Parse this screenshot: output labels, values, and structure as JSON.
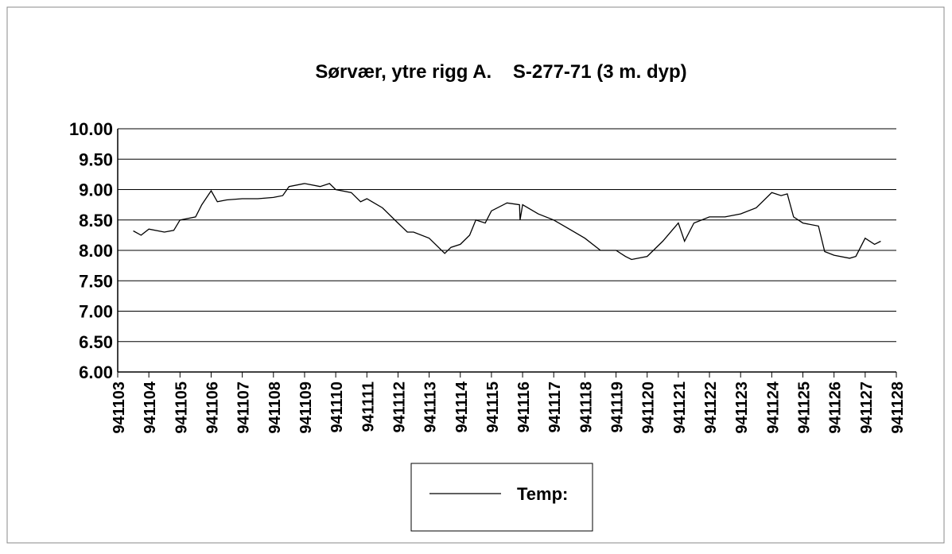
{
  "chart_data": {
    "type": "line",
    "title": "Sørvær, ytre rigg A.    S-277-71 (3 m. dyp)",
    "xlim": [
      941103,
      941128
    ],
    "xticks": [
      941103,
      941104,
      941105,
      941106,
      941107,
      941108,
      941109,
      941110,
      941111,
      941112,
      941113,
      941114,
      941115,
      941116,
      941117,
      941118,
      941119,
      941120,
      941121,
      941122,
      941123,
      941124,
      941125,
      941126,
      941127,
      941128
    ],
    "ylim": [
      6,
      10
    ],
    "yticks": [
      {
        "value": 6,
        "label": "6.00"
      },
      {
        "value": 6.5,
        "label": "6.50"
      },
      {
        "value": 7,
        "label": "7.00"
      },
      {
        "value": 7.5,
        "label": "7.50"
      },
      {
        "value": 8,
        "label": "8.00"
      },
      {
        "value": 8.5,
        "label": "8.50"
      },
      {
        "value": 9,
        "label": "9.00"
      },
      {
        "value": 9.5,
        "label": "9.50"
      },
      {
        "value": 10,
        "label": "10.00"
      }
    ],
    "grid": true,
    "legend": "bottom",
    "x": [
      941103.5,
      941103.75,
      941104,
      941104.5,
      941104.8,
      941105,
      941105.5,
      941105.7,
      941106,
      941106.2,
      941106.5,
      941107,
      941107.5,
      941108,
      941108.3,
      941108.5,
      941109,
      941109.5,
      941109.8,
      941110,
      941110.5,
      941110.8,
      941111,
      941111.5,
      941112,
      941112.3,
      941112.5,
      941113,
      941113.5,
      941113.7,
      941114,
      941114.3,
      941114.5,
      941114.8,
      941115,
      941115.5,
      941115.9,
      941115.92,
      941116,
      941116.5,
      941117,
      941117.5,
      941118,
      941118.5,
      941119,
      941119.3,
      941119.5,
      941120,
      941120.5,
      941121,
      941121.2,
      941121.5,
      941122,
      941122.5,
      941123,
      941123.5,
      941124,
      941124.3,
      941124.5,
      941124.7,
      941125,
      941125.5,
      941125.7,
      941126,
      941126.5,
      941126.7,
      941127,
      941127.3,
      941127.5
    ],
    "series": [
      {
        "name": "Temp:",
        "color": "#000000",
        "values": [
          8.32,
          8.25,
          8.35,
          8.3,
          8.33,
          8.5,
          8.55,
          8.75,
          8.98,
          8.8,
          8.83,
          8.85,
          8.85,
          8.87,
          8.9,
          9.05,
          9.1,
          9.05,
          9.1,
          9.0,
          8.95,
          8.8,
          8.85,
          8.7,
          8.45,
          8.3,
          8.3,
          8.2,
          7.95,
          8.05,
          8.1,
          8.25,
          8.5,
          8.45,
          8.65,
          8.78,
          8.75,
          8.5,
          8.75,
          8.6,
          8.5,
          8.35,
          8.2,
          8.0,
          8.0,
          7.9,
          7.85,
          7.9,
          8.15,
          8.45,
          8.15,
          8.45,
          8.55,
          8.55,
          8.6,
          8.7,
          8.95,
          8.9,
          8.93,
          8.55,
          8.45,
          8.4,
          7.98,
          7.92,
          7.87,
          7.9,
          8.2,
          8.1,
          8.15
        ]
      }
    ]
  }
}
